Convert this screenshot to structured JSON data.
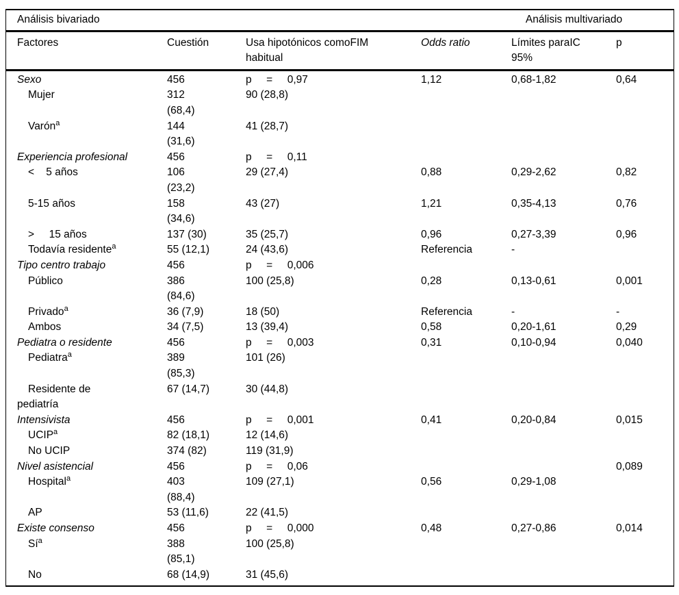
{
  "table": {
    "group_headers": {
      "bivariate": "Análisis bivariado",
      "multivariate": "Análisis multivariado"
    },
    "columns": [
      "Factores",
      "Cuestión",
      "Usa hipotónicos comoFIM\nhabitual",
      "Odds ratio",
      "Límites paraIC\n95%",
      "p"
    ],
    "rows": [
      {
        "factor": "Sexo",
        "italic": true,
        "indent": 0,
        "cuestion": "456",
        "uso": "p     =     0,97",
        "odds": "1,12",
        "ic": "0,68-1,82",
        "p": "0,64"
      },
      {
        "factor": "Mujer",
        "italic": false,
        "indent": 1,
        "cuestion": "312\n(68,4)",
        "uso": "90 (28,8)",
        "odds": "",
        "ic": "",
        "p": ""
      },
      {
        "factor": "Varón",
        "sup": "a",
        "italic": false,
        "indent": 1,
        "cuestion": "144\n(31,6)",
        "uso": "41 (28,7)",
        "odds": "",
        "ic": "",
        "p": ""
      },
      {
        "factor": "Experiencia profesional",
        "italic": true,
        "indent": 0,
        "cuestion": "456",
        "uso": "p     =     0,11",
        "odds": "",
        "ic": "",
        "p": ""
      },
      {
        "factor": "<    5 años",
        "italic": false,
        "indent": 1,
        "cuestion": "106\n(23,2)",
        "uso": "29 (27,4)",
        "odds": "0,88",
        "ic": "0,29-2,62",
        "p": "0,82"
      },
      {
        "factor": "5-15 años",
        "italic": false,
        "indent": 1,
        "cuestion": "158\n(34,6)",
        "uso": "43 (27)",
        "odds": "1,21",
        "ic": "0,35-4,13",
        "p": "0,76"
      },
      {
        "factor": ">     15 años",
        "italic": false,
        "indent": 1,
        "cuestion": "137 (30)",
        "uso": "35 (25,7)",
        "odds": "0,96",
        "ic": "0,27-3,39",
        "p": "0,96"
      },
      {
        "factor": "Todavía residente",
        "sup": "a",
        "italic": false,
        "indent": 1,
        "cuestion": "55 (12,1)",
        "uso": "24 (43,6)",
        "odds": "Referencia",
        "ic": "-",
        "p": ""
      },
      {
        "factor": "Tipo centro trabajo",
        "italic": true,
        "indent": 0,
        "cuestion": "456",
        "uso": "p     =     0,006",
        "odds": "",
        "ic": "",
        "p": ""
      },
      {
        "factor": "Público",
        "italic": false,
        "indent": 1,
        "cuestion": "386\n(84,6)",
        "uso": "100 (25,8)",
        "odds": "0,28",
        "ic": "0,13-0,61",
        "p": "0,001"
      },
      {
        "factor": "Privado",
        "sup": "a",
        "italic": false,
        "indent": 1,
        "cuestion": "36 (7,9)",
        "uso": "18 (50)",
        "odds": "Referencia",
        "ic": "-",
        "p": "-"
      },
      {
        "factor": "Ambos",
        "italic": false,
        "indent": 1,
        "cuestion": "34 (7,5)",
        "uso": "13 (39,4)",
        "odds": "0,58",
        "ic": "0,20-1,61",
        "p": "0,29"
      },
      {
        "factor": "Pediatra o residente",
        "italic": true,
        "indent": 0,
        "cuestion": "456",
        "uso": "p     =     0,003",
        "odds": "0,31",
        "ic": "0,10-0,94",
        "p": "0,040"
      },
      {
        "factor": "Pediatra",
        "sup": "a",
        "italic": false,
        "indent": 1,
        "cuestion": "389\n(85,3)",
        "uso": "101 (26)",
        "odds": "",
        "ic": "",
        "p": ""
      },
      {
        "factor": "Residente de\npediatría",
        "italic": false,
        "indent": 1,
        "cuestion": "67 (14,7)",
        "uso": "30 (44,8)",
        "odds": "",
        "ic": "",
        "p": ""
      },
      {
        "factor": "Intensivista",
        "italic": true,
        "indent": 0,
        "cuestion": "456",
        "uso": "p     =     0,001",
        "odds": "0,41",
        "ic": "0,20-0,84",
        "p": "0,015"
      },
      {
        "factor": "UCIP",
        "sup": "a",
        "italic": false,
        "indent": 1,
        "cuestion": "82 (18,1)",
        "uso": "12 (14,6)",
        "odds": "",
        "ic": "",
        "p": ""
      },
      {
        "factor": "No UCIP",
        "italic": false,
        "indent": 1,
        "cuestion": "374 (82)",
        "uso": "119 (31,9)",
        "odds": "",
        "ic": "",
        "p": ""
      },
      {
        "factor": "Nivel asistencial",
        "italic": true,
        "indent": 0,
        "cuestion": "456",
        "uso": "p     =     0,06",
        "odds": "",
        "ic": "",
        "p": "0,089"
      },
      {
        "factor": "Hospital",
        "sup": "a",
        "italic": false,
        "indent": 1,
        "cuestion": "403\n(88,4)",
        "uso": "109 (27,1)",
        "odds": "0,56",
        "ic": "0,29-1,08",
        "p": ""
      },
      {
        "factor": "AP",
        "italic": false,
        "indent": 1,
        "cuestion": "53 (11,6)",
        "uso": "22 (41,5)",
        "odds": "",
        "ic": "",
        "p": ""
      },
      {
        "factor": "Existe consenso",
        "italic": true,
        "indent": 0,
        "cuestion": "456",
        "uso": "p     =     0,000",
        "odds": "0,48",
        "ic": "0,27-0,86",
        "p": "0,014"
      },
      {
        "factor": "Sí",
        "sup": "a",
        "italic": false,
        "indent": 1,
        "cuestion": "388\n(85,1)",
        "uso": "100 (25,8)",
        "odds": "",
        "ic": "",
        "p": ""
      },
      {
        "factor": "No",
        "italic": false,
        "indent": 1,
        "cuestion": "68 (14,9)",
        "uso": "31 (45,6)",
        "odds": "",
        "ic": "",
        "p": ""
      }
    ]
  }
}
